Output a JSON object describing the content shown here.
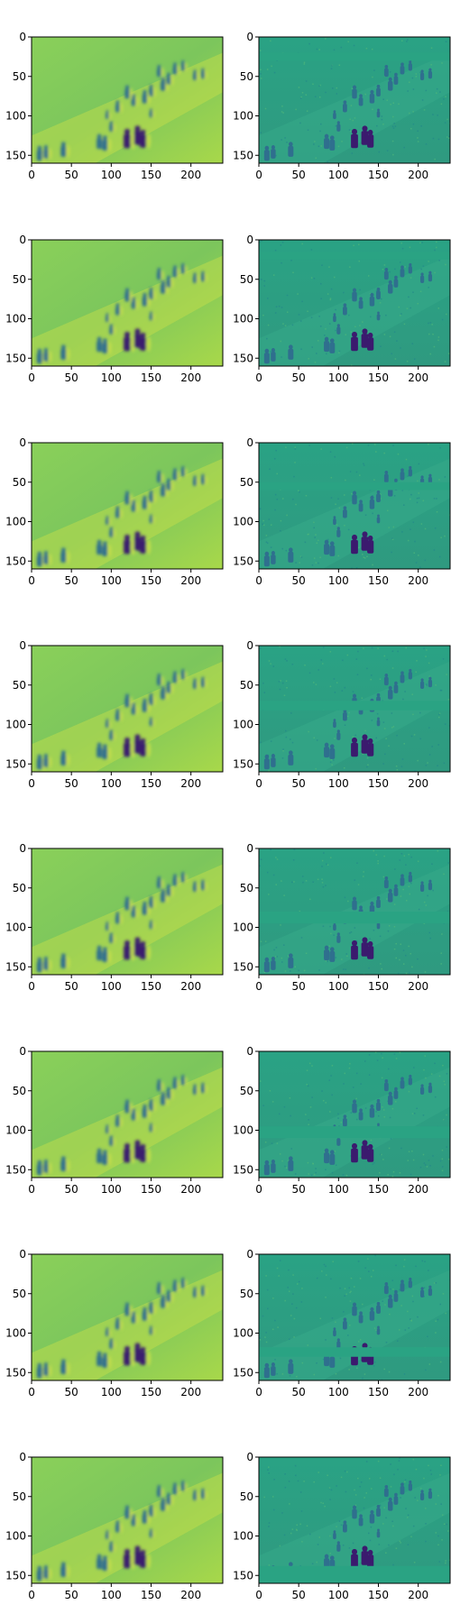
{
  "chart_data": {
    "type": "heatmap",
    "layout": {
      "rows": 8,
      "cols": 2
    },
    "colormap": "viridis",
    "image_size": {
      "width": 240,
      "height": 160
    },
    "x_ticks": [
      0,
      50,
      100,
      150,
      200
    ],
    "y_ticks": [
      0,
      50,
      100,
      150
    ],
    "xlim": [
      0,
      240
    ],
    "ylim": [
      160,
      0
    ],
    "y_axis_inverted": true,
    "content_note": "Crowd scene of walking pedestrians; left column smooth reconstruction, right column detailed intensity map",
    "panels": [
      {
        "row": 1,
        "column": 1,
        "masked_band": null
      },
      {
        "row": 1,
        "column": 2,
        "masked_band": [
          20,
          30
        ]
      },
      {
        "row": 2,
        "column": 1,
        "masked_band": null
      },
      {
        "row": 2,
        "column": 2,
        "masked_band": [
          15,
          25
        ]
      },
      {
        "row": 3,
        "column": 1,
        "masked_band": null
      },
      {
        "row": 3,
        "column": 2,
        "masked_band": [
          50,
          60
        ]
      },
      {
        "row": 4,
        "column": 1,
        "masked_band": null
      },
      {
        "row": 4,
        "column": 2,
        "masked_band": [
          70,
          82
        ]
      },
      {
        "row": 5,
        "column": 1,
        "masked_band": null
      },
      {
        "row": 5,
        "column": 2,
        "masked_band": [
          80,
          95
        ]
      },
      {
        "row": 6,
        "column": 1,
        "masked_band": null
      },
      {
        "row": 6,
        "column": 2,
        "masked_band": [
          95,
          110
        ]
      },
      {
        "row": 7,
        "column": 1,
        "masked_band": null
      },
      {
        "row": 7,
        "column": 2,
        "masked_band": [
          118,
          130
        ]
      },
      {
        "row": 8,
        "column": 1,
        "masked_band": null
      },
      {
        "row": 8,
        "column": 2,
        "masked_band": [
          138,
          160
        ]
      }
    ],
    "colors": {
      "left_background": "#7fcf5e",
      "right_background": "#2a9d82",
      "dark_figure": "#3b1a6e",
      "mid_blue": "#2f6f8e",
      "light_yellow": "#c9e04a"
    }
  }
}
